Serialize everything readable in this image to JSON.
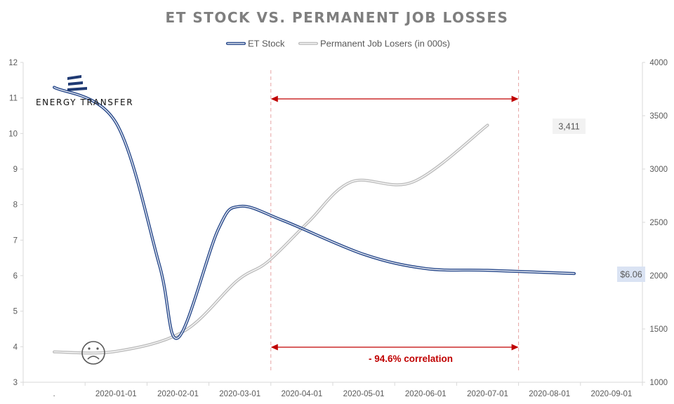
{
  "chart_data": {
    "type": "line",
    "title": "ET STOCK VS. PERMANENT JOB LOSSES",
    "categories": [
      ".",
      "2020-01-01",
      "2020-02-01",
      "2020-03-01",
      "2020-04-01",
      "2020-05-01",
      "2020-06-01",
      "2020-07-01",
      "2020-08-01",
      "2020-09-01"
    ],
    "y_left": {
      "min": 3,
      "max": 12,
      "ticks": [
        3,
        4,
        5,
        6,
        7,
        8,
        9,
        10,
        11,
        12
      ]
    },
    "y_right": {
      "min": 1000,
      "max": 4000,
      "ticks": [
        1000,
        1500,
        2000,
        2500,
        3000,
        3500,
        4000
      ]
    },
    "grid": false,
    "legend": "top-center",
    "series": [
      {
        "name": "ET Stock",
        "axis": "left",
        "color": "#2f4f8f",
        "points": [
          {
            "x": 0.5,
            "y": 11.3
          },
          {
            "x": 1.5,
            "y": 10.3
          },
          {
            "x": 2.2,
            "y": 6.3
          },
          {
            "x": 2.5,
            "y": 4.25
          },
          {
            "x": 3.15,
            "y": 7.3
          },
          {
            "x": 3.5,
            "y": 7.95
          },
          {
            "x": 4.2,
            "y": 7.55
          },
          {
            "x": 5.5,
            "y": 6.6
          },
          {
            "x": 6.5,
            "y": 6.2
          },
          {
            "x": 7.5,
            "y": 6.15
          },
          {
            "x": 8.9,
            "y": 6.06
          }
        ]
      },
      {
        "name": "Permanent Job Losers (in 000s)",
        "axis": "right",
        "color": "#bfbfbf",
        "points": [
          {
            "x": 0.5,
            "y": 1285
          },
          {
            "x": 1.5,
            "y": 1290
          },
          {
            "x": 2.6,
            "y": 1480
          },
          {
            "x": 3.45,
            "y": 1950
          },
          {
            "x": 3.95,
            "y": 2130
          },
          {
            "x": 4.6,
            "y": 2500
          },
          {
            "x": 5.3,
            "y": 2880
          },
          {
            "x": 6.3,
            "y": 2880
          },
          {
            "x": 7.5,
            "y": 3411
          }
        ]
      }
    ],
    "annotations": {
      "correlation_label": "- 94.6% correlation",
      "last_job_label": "3,411",
      "last_stock_label": "$6.06",
      "range_start": "2020-04-01",
      "range_end": "2020-08-01"
    },
    "colors": {
      "stock": "#2f4f8f",
      "jobs": "#bfbfbf",
      "marker": "#c00000"
    }
  },
  "logo": {
    "company": "ENERGY TRANSFER"
  },
  "icons": {
    "corner_face": "sad-face-icon"
  }
}
